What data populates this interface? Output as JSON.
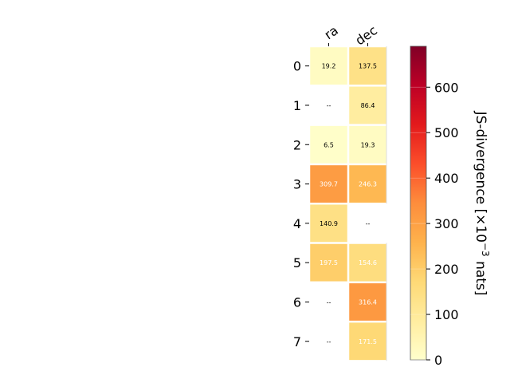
{
  "chart_data": {
    "type": "heatmap",
    "columns": [
      "ra",
      "dec"
    ],
    "rows": [
      "0",
      "1",
      "2",
      "3",
      "4",
      "5",
      "6",
      "7"
    ],
    "values": [
      [
        19.2,
        137.5
      ],
      [
        null,
        86.4
      ],
      [
        6.5,
        19.3
      ],
      [
        309.7,
        246.3
      ],
      [
        140.9,
        null
      ],
      [
        197.5,
        154.6
      ],
      [
        null,
        316.4
      ],
      [
        null,
        171.5
      ]
    ],
    "cell_labels": [
      [
        "19.2",
        "137.5"
      ],
      [
        "--",
        "86.4"
      ],
      [
        "6.5",
        "19.3"
      ],
      [
        "309.7",
        "246.3"
      ],
      [
        "140.9",
        "--"
      ],
      [
        "197.5",
        "154.6"
      ],
      [
        "--",
        "316.4"
      ],
      [
        "--",
        "171.5"
      ]
    ],
    "colormap": "YlOrRd",
    "colorbar": {
      "label_main": "JS-divergence [×10",
      "label_exp": "−3",
      "label_unit": " nats]",
      "range": [
        0,
        690
      ],
      "ticks": [
        0,
        100,
        200,
        300,
        400,
        500,
        600
      ],
      "tick_labels": [
        "0",
        "100",
        "200",
        "300",
        "400",
        "500",
        "600"
      ]
    },
    "colorbar_stops": [
      "#ffffcc",
      "#ffeda0",
      "#fed976",
      "#feb24c",
      "#fd8d3c",
      "#fc4e2a",
      "#e31a1c",
      "#bd0026",
      "#800026"
    ]
  }
}
